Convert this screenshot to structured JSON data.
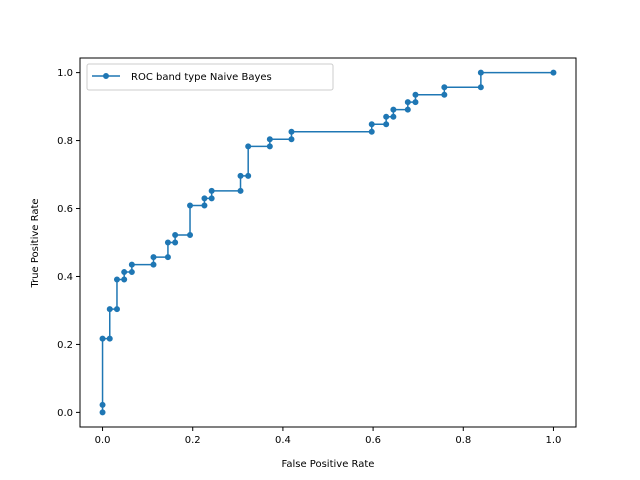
{
  "chart_data": {
    "type": "line",
    "title": "",
    "xlabel": "False Positive Rate",
    "ylabel": "True Positive Rate",
    "xlim": [
      -0.05,
      1.05
    ],
    "ylim": [
      -0.043,
      1.043
    ],
    "xticks": [
      0.0,
      0.2,
      0.4,
      0.6,
      0.8,
      1.0
    ],
    "xtick_labels": [
      "0.0",
      "0.2",
      "0.4",
      "0.6",
      "0.8",
      "1.0"
    ],
    "yticks": [
      0.0,
      0.2,
      0.4,
      0.6,
      0.8,
      1.0
    ],
    "ytick_labels": [
      "0.0",
      "0.2",
      "0.4",
      "0.6",
      "0.8",
      "1.0"
    ],
    "grid": false,
    "legend_position": "top-left",
    "series": [
      {
        "name": "ROC band type Naive Bayes",
        "color": "#1f77b4",
        "marker": "circle",
        "step": true,
        "points": [
          [
            0.0,
            0.0
          ],
          [
            0.0,
            0.022
          ],
          [
            0.0,
            0.217
          ],
          [
            0.016,
            0.217
          ],
          [
            0.016,
            0.304
          ],
          [
            0.032,
            0.304
          ],
          [
            0.032,
            0.391
          ],
          [
            0.048,
            0.391
          ],
          [
            0.048,
            0.413
          ],
          [
            0.065,
            0.413
          ],
          [
            0.065,
            0.435
          ],
          [
            0.113,
            0.435
          ],
          [
            0.113,
            0.457
          ],
          [
            0.145,
            0.457
          ],
          [
            0.145,
            0.5
          ],
          [
            0.161,
            0.5
          ],
          [
            0.161,
            0.522
          ],
          [
            0.194,
            0.522
          ],
          [
            0.194,
            0.609
          ],
          [
            0.226,
            0.609
          ],
          [
            0.226,
            0.63
          ],
          [
            0.242,
            0.63
          ],
          [
            0.242,
            0.652
          ],
          [
            0.306,
            0.652
          ],
          [
            0.306,
            0.696
          ],
          [
            0.323,
            0.696
          ],
          [
            0.323,
            0.783
          ],
          [
            0.371,
            0.783
          ],
          [
            0.371,
            0.804
          ],
          [
            0.419,
            0.804
          ],
          [
            0.419,
            0.826
          ],
          [
            0.597,
            0.826
          ],
          [
            0.597,
            0.848
          ],
          [
            0.629,
            0.848
          ],
          [
            0.629,
            0.87
          ],
          [
            0.645,
            0.87
          ],
          [
            0.645,
            0.891
          ],
          [
            0.677,
            0.891
          ],
          [
            0.677,
            0.913
          ],
          [
            0.694,
            0.913
          ],
          [
            0.694,
            0.935
          ],
          [
            0.758,
            0.935
          ],
          [
            0.758,
            0.957
          ],
          [
            0.839,
            0.957
          ],
          [
            0.839,
            1.0
          ],
          [
            1.0,
            1.0
          ]
        ]
      }
    ]
  }
}
